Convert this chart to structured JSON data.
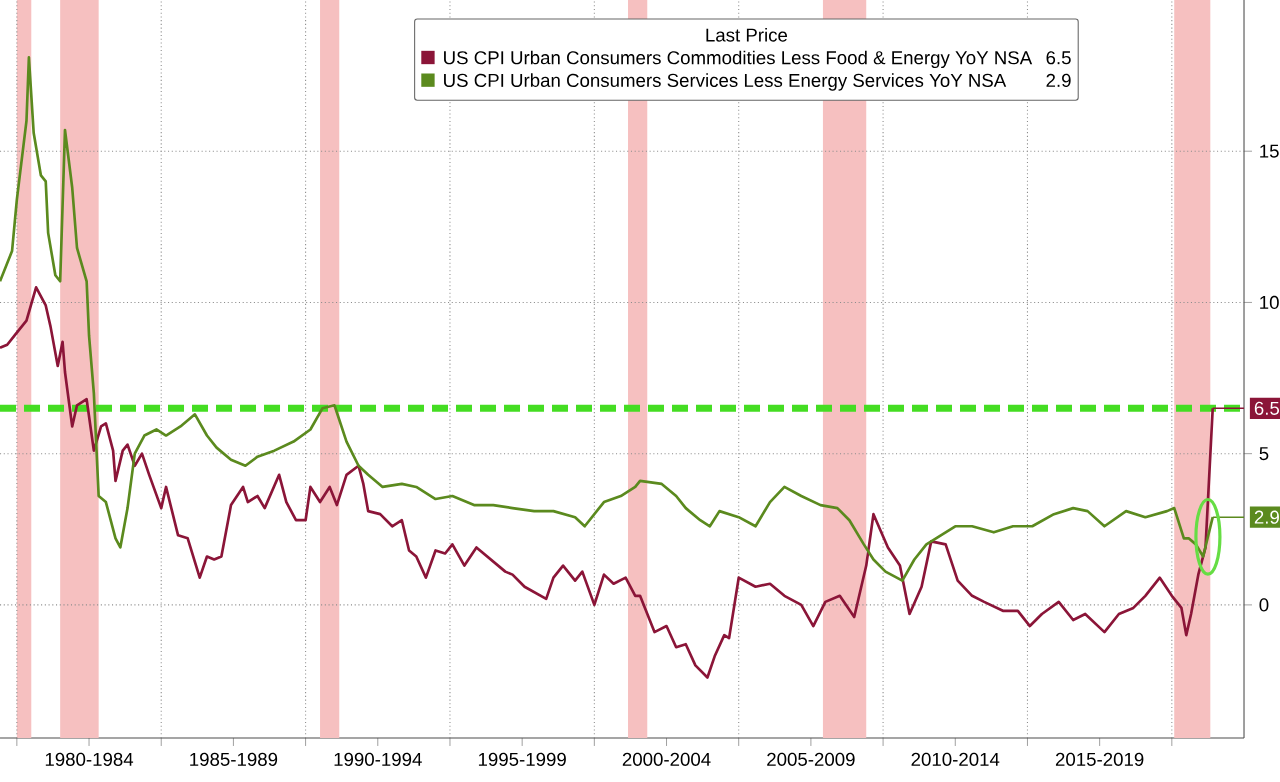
{
  "chart_data": {
    "type": "line",
    "legend_title": "Last Price",
    "legend": "top",
    "grid": true,
    "xlim": [
      "1979-06",
      "2022-07"
    ],
    "ylim": [
      -4.4,
      20
    ],
    "xticks": [
      {
        "value": "1980-01",
        "label": null
      },
      {
        "value": "1982-07",
        "label": "1980-1984"
      },
      {
        "value": "1985-01",
        "label": null
      },
      {
        "value": "1987-07",
        "label": "1985-1989"
      },
      {
        "value": "1990-01",
        "label": null
      },
      {
        "value": "1992-07",
        "label": "1990-1994"
      },
      {
        "value": "1995-01",
        "label": null
      },
      {
        "value": "1997-07",
        "label": "1995-1999"
      },
      {
        "value": "2000-01",
        "label": null
      },
      {
        "value": "2002-07",
        "label": "2000-2004"
      },
      {
        "value": "2005-01",
        "label": null
      },
      {
        "value": "2007-07",
        "label": "2005-2009"
      },
      {
        "value": "2010-01",
        "label": null
      },
      {
        "value": "2012-07",
        "label": "2010-2014"
      },
      {
        "value": "2015-01",
        "label": null
      },
      {
        "value": "2017-07",
        "label": "2015-2019"
      },
      {
        "value": "2020-01",
        "label": null
      }
    ],
    "yticks": [
      0,
      5,
      10,
      15
    ],
    "bands": [
      {
        "axis": "x",
        "from": "1980-01",
        "to": "1980-07",
        "color": "#f6c0c0"
      },
      {
        "axis": "x",
        "from": "1981-07",
        "to": "1982-11",
        "color": "#f6c0c0"
      },
      {
        "axis": "x",
        "from": "1990-07",
        "to": "1991-03",
        "color": "#f6c0c0"
      },
      {
        "axis": "x",
        "from": "2001-03",
        "to": "2001-11",
        "color": "#f6c0c0"
      },
      {
        "axis": "x",
        "from": "2007-12",
        "to": "2009-06",
        "color": "#f6c0c0"
      },
      {
        "axis": "x",
        "from": "2020-02",
        "to": "2021-05",
        "color": "#f6c0c0"
      }
    ],
    "ref_lines": [
      {
        "axis": "y",
        "value": 6.5,
        "color": "#44dd22",
        "line_style": "dashed"
      }
    ],
    "annotations": [
      {
        "text": "6.5",
        "x": "2021-06",
        "y": 6.5
      },
      {
        "text": "2.9",
        "x": "2021-06",
        "y": 2.9
      }
    ],
    "series": [
      {
        "name": "US CPI Urban Consumers Commodities Less Food & Energy YoY NSA",
        "color": "#8b1538",
        "x": [
          "1979-06",
          "1979-09",
          "1979-12",
          "1980-05",
          "1980-09",
          "1981-01",
          "1981-03",
          "1981-06",
          "1981-08",
          "1981-09",
          "1981-12",
          "1982-02",
          "1982-06",
          "1982-09",
          "1982-12",
          "1983-02",
          "1983-05",
          "1983-06",
          "1983-09",
          "1983-11",
          "1984-02",
          "1984-05",
          "1984-08",
          "1985-01",
          "1985-03",
          "1985-08",
          "1985-12",
          "1986-05",
          "1986-08",
          "1986-11",
          "1987-02",
          "1987-06",
          "1987-11",
          "1988-01",
          "1988-05",
          "1988-08",
          "1989-02",
          "1989-05",
          "1989-09",
          "1990-01",
          "1990-03",
          "1990-07",
          "1990-11",
          "1991-02",
          "1991-06",
          "1991-11",
          "1992-01",
          "1992-03",
          "1992-08",
          "1993-01",
          "1993-05",
          "1993-08",
          "1993-11",
          "1994-03",
          "1994-07",
          "1994-11",
          "1995-02",
          "1995-07",
          "1995-12",
          "1996-06",
          "1996-12",
          "1997-03",
          "1997-08",
          "1998-05",
          "1998-08",
          "1998-12",
          "1999-05",
          "1999-08",
          "2000-01",
          "2000-05",
          "2000-09",
          "2001-02",
          "2001-06",
          "2001-08",
          "2002-02",
          "2002-07",
          "2002-11",
          "2003-03",
          "2003-07",
          "2003-12",
          "2004-03",
          "2004-07",
          "2004-09",
          "2005-01",
          "2005-08",
          "2006-02",
          "2006-08",
          "2007-03",
          "2007-08",
          "2008-01",
          "2008-07",
          "2009-01",
          "2009-06",
          "2009-09",
          "2010-03",
          "2010-08",
          "2010-12",
          "2011-05",
          "2011-09",
          "2012-03",
          "2012-08",
          "2013-02",
          "2013-07",
          "2014-03",
          "2014-09",
          "2015-02",
          "2015-07",
          "2016-02",
          "2016-08",
          "2017-01",
          "2017-09",
          "2018-03",
          "2018-09",
          "2019-02",
          "2019-08",
          "2020-01",
          "2020-05",
          "2020-07",
          "2020-09",
          "2020-12",
          "2021-03",
          "2021-06"
        ],
        "values": [
          8.5,
          8.6,
          8.9,
          9.4,
          10.5,
          9.9,
          9.2,
          7.9,
          8.7,
          7.7,
          5.9,
          6.6,
          6.8,
          5.1,
          5.9,
          6.0,
          5.1,
          4.1,
          5.1,
          5.3,
          4.6,
          5.0,
          4.3,
          3.2,
          3.9,
          2.3,
          2.2,
          0.9,
          1.6,
          1.5,
          1.6,
          3.3,
          3.9,
          3.4,
          3.6,
          3.2,
          4.3,
          3.4,
          2.8,
          2.8,
          3.9,
          3.4,
          3.9,
          3.3,
          4.3,
          4.6,
          4.0,
          3.1,
          3.0,
          2.6,
          2.8,
          1.8,
          1.6,
          0.9,
          1.8,
          1.7,
          2.0,
          1.3,
          1.9,
          1.5,
          1.1,
          1.0,
          0.6,
          0.2,
          0.9,
          1.3,
          0.8,
          1.1,
          0.0,
          1.0,
          0.7,
          0.9,
          0.3,
          0.3,
          -0.9,
          -0.7,
          -1.4,
          -1.3,
          -2.0,
          -2.4,
          -1.7,
          -1.0,
          -1.1,
          0.9,
          0.6,
          0.7,
          0.3,
          0.0,
          -0.7,
          0.1,
          0.3,
          -0.4,
          1.3,
          3.0,
          1.9,
          1.3,
          -0.3,
          0.6,
          2.1,
          2.0,
          0.8,
          0.3,
          0.1,
          -0.2,
          -0.2,
          -0.7,
          -0.3,
          0.1,
          -0.5,
          -0.3,
          -0.9,
          -0.3,
          -0.1,
          0.3,
          0.9,
          0.3,
          -0.1,
          -1.0,
          -0.3,
          1.0,
          1.9,
          6.5
        ]
      },
      {
        "name": "US CPI Urban Consumers Services Less Energy Services YoY NSA",
        "color": "#5b8a1e",
        "x": [
          "1979-06",
          "1979-11",
          "1980-01",
          "1980-05",
          "1980-06",
          "1980-08",
          "1980-11",
          "1981-01",
          "1981-02",
          "1981-05",
          "1981-07",
          "1981-09",
          "1981-12",
          "1982-02",
          "1982-06",
          "1982-07",
          "1982-09",
          "1982-11",
          "1983-02",
          "1983-06",
          "1983-08",
          "1983-11",
          "1984-02",
          "1984-06",
          "1984-11",
          "1985-03",
          "1985-09",
          "1986-03",
          "1986-08",
          "1986-12",
          "1987-06",
          "1987-12",
          "1988-05",
          "1988-12",
          "1989-08",
          "1990-03",
          "1990-08",
          "1991-01",
          "1991-06",
          "1991-11",
          "1992-03",
          "1992-09",
          "1993-05",
          "1993-11",
          "1994-07",
          "1995-02",
          "1995-11",
          "1996-07",
          "1997-03",
          "1997-12",
          "1998-08",
          "1999-05",
          "1999-09",
          "2000-05",
          "2000-12",
          "2001-06",
          "2001-08",
          "2002-05",
          "2002-11",
          "2003-03",
          "2003-09",
          "2004-01",
          "2004-05",
          "2005-01",
          "2005-08",
          "2006-02",
          "2006-08",
          "2007-03",
          "2007-11",
          "2008-06",
          "2008-11",
          "2009-05",
          "2009-09",
          "2010-02",
          "2010-09",
          "2011-02",
          "2011-07",
          "2012-01",
          "2012-07",
          "2013-02",
          "2013-11",
          "2014-07",
          "2015-03",
          "2015-12",
          "2016-08",
          "2017-02",
          "2017-09",
          "2018-06",
          "2019-02",
          "2019-11",
          "2020-02",
          "2020-06",
          "2020-08",
          "2020-11",
          "2021-02",
          "2021-06"
        ],
        "values": [
          10.7,
          11.7,
          13.4,
          16.0,
          18.1,
          15.6,
          14.2,
          14.0,
          12.3,
          10.9,
          10.7,
          15.7,
          13.8,
          11.8,
          10.7,
          8.9,
          7.0,
          3.6,
          3.4,
          2.2,
          1.9,
          3.2,
          5.0,
          5.6,
          5.8,
          5.6,
          5.9,
          6.3,
          5.6,
          5.2,
          4.8,
          4.6,
          4.9,
          5.1,
          5.4,
          5.8,
          6.5,
          6.6,
          5.4,
          4.6,
          4.3,
          3.9,
          4.0,
          3.9,
          3.5,
          3.6,
          3.3,
          3.3,
          3.2,
          3.1,
          3.1,
          2.9,
          2.6,
          3.4,
          3.6,
          3.9,
          4.1,
          4.0,
          3.6,
          3.2,
          2.8,
          2.6,
          3.1,
          2.9,
          2.6,
          3.4,
          3.9,
          3.6,
          3.3,
          3.2,
          2.8,
          2.0,
          1.5,
          1.1,
          0.8,
          1.5,
          2.0,
          2.3,
          2.6,
          2.6,
          2.4,
          2.6,
          2.6,
          3.0,
          3.2,
          3.1,
          2.6,
          3.1,
          2.9,
          3.1,
          3.2,
          2.2,
          2.2,
          2.0,
          1.6,
          2.9
        ]
      }
    ]
  }
}
